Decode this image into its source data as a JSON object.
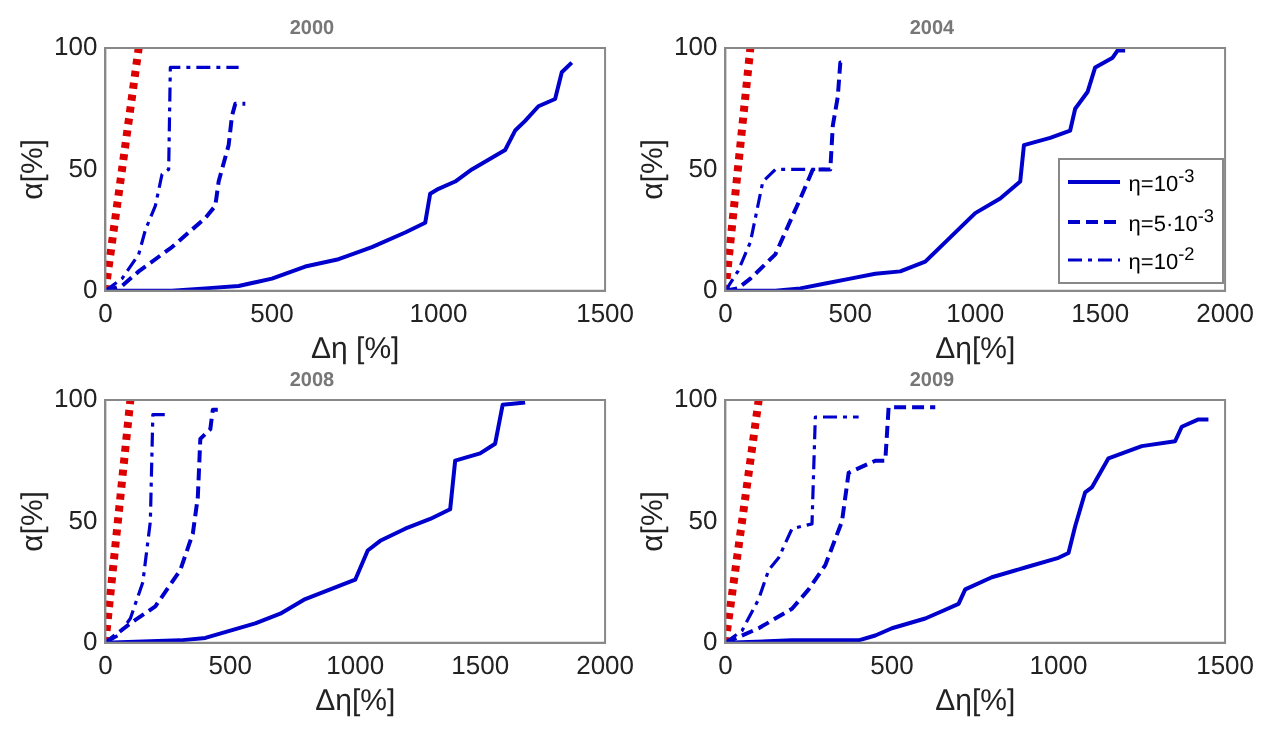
{
  "chart_data": [
    {
      "type": "line",
      "title": "2000",
      "xlabel": "Δη [%]",
      "ylabel": "α[%]",
      "xlim": [
        0,
        1500
      ],
      "xticks": [
        0,
        500,
        1000,
        1500
      ],
      "ylim": [
        0,
        100
      ],
      "yticks": [
        0,
        50,
        100
      ],
      "grid": false,
      "legend": false,
      "series": [
        {
          "color": "#0000cc",
          "line_style": "solid",
          "x": [
            0,
            200,
            300,
            400,
            500,
            600,
            700,
            800,
            900,
            960,
            975,
            1000,
            1050,
            1100,
            1150,
            1200,
            1230,
            1260,
            1300,
            1350,
            1370,
            1400
          ],
          "values": [
            0,
            0,
            1,
            2,
            5,
            10,
            13,
            18,
            24,
            28,
            40,
            42,
            45,
            50,
            54,
            58,
            66,
            70,
            76,
            79,
            90,
            94
          ]
        },
        {
          "color": "#0000cc",
          "line_style": "dashed",
          "x": [
            0,
            50,
            100,
            200,
            300,
            330,
            340,
            370,
            380,
            390,
            420
          ],
          "values": [
            0,
            2,
            8,
            18,
            30,
            35,
            45,
            60,
            72,
            77,
            77
          ]
        },
        {
          "color": "#0000cc",
          "line_style": "dashdot",
          "x": [
            0,
            50,
            100,
            120,
            150,
            170,
            190,
            195,
            400
          ],
          "values": [
            0,
            5,
            15,
            25,
            35,
            48,
            50,
            92,
            92
          ]
        },
        {
          "color": "#dd0000",
          "line_style": "dotted",
          "x": [
            0,
            100
          ],
          "values": [
            0,
            100
          ]
        }
      ]
    },
    {
      "type": "line",
      "title": "2004",
      "xlabel": "Δη[%]",
      "ylabel": "α[%]",
      "xlim": [
        0,
        2000
      ],
      "xticks": [
        0,
        500,
        1000,
        1500,
        2000
      ],
      "ylim": [
        0,
        100
      ],
      "yticks": [
        0,
        50,
        100
      ],
      "grid": false,
      "legend": "right",
      "series": [
        {
          "name": "η=10$^{-3}$",
          "color": "#0000cc",
          "line_style": "solid",
          "x": [
            0,
            200,
            300,
            400,
            500,
            600,
            700,
            800,
            900,
            1000,
            1100,
            1180,
            1195,
            1300,
            1380,
            1400,
            1450,
            1480,
            1550,
            1570,
            1600
          ],
          "values": [
            0,
            0,
            1,
            3,
            5,
            7,
            8,
            12,
            22,
            32,
            38,
            45,
            60,
            63,
            66,
            75,
            82,
            92,
            96,
            99,
            99
          ]
        },
        {
          "name": "η=5·10$^{-3}$",
          "color": "#0000cc",
          "line_style": "dashed",
          "x": [
            0,
            50,
            100,
            200,
            300,
            350,
            420,
            430,
            450,
            460,
            480
          ],
          "values": [
            0,
            1,
            5,
            15,
            38,
            50,
            50,
            68,
            80,
            94,
            94
          ]
        },
        {
          "name": "η=10$^{-2}$",
          "color": "#0000cc",
          "line_style": "dashdot",
          "x": [
            0,
            50,
            100,
            150,
            200,
            400
          ],
          "values": [
            0,
            8,
            20,
            45,
            50,
            50
          ]
        },
        {
          "color": "#dd0000",
          "line_style": "dotted",
          "x": [
            0,
            100
          ],
          "values": [
            0,
            100
          ]
        }
      ]
    },
    {
      "type": "line",
      "title": "2008",
      "xlabel": "Δη[%]",
      "ylabel": "α[%]",
      "xlim": [
        0,
        2000
      ],
      "xticks": [
        0,
        500,
        1000,
        1500,
        2000
      ],
      "ylim": [
        0,
        100
      ],
      "yticks": [
        0,
        50,
        100
      ],
      "grid": false,
      "legend": false,
      "series": [
        {
          "color": "#0000cc",
          "line_style": "solid",
          "x": [
            0,
            300,
            400,
            500,
            600,
            700,
            800,
            900,
            1000,
            1050,
            1100,
            1200,
            1300,
            1380,
            1400,
            1500,
            1560,
            1590,
            1680
          ],
          "values": [
            0,
            1,
            2,
            5,
            8,
            12,
            18,
            22,
            26,
            38,
            42,
            47,
            51,
            55,
            75,
            78,
            82,
            98,
            99
          ]
        },
        {
          "color": "#0000cc",
          "line_style": "dashed",
          "x": [
            0,
            100,
            200,
            300,
            350,
            370,
            380,
            420,
            430,
            450
          ],
          "values": [
            0,
            8,
            15,
            30,
            45,
            60,
            84,
            88,
            96,
            96
          ]
        },
        {
          "color": "#0000cc",
          "line_style": "dashdot",
          "x": [
            0,
            50,
            100,
            150,
            180,
            190,
            240
          ],
          "values": [
            0,
            3,
            10,
            25,
            50,
            94,
            94
          ]
        },
        {
          "color": "#dd0000",
          "line_style": "dotted",
          "x": [
            0,
            100
          ],
          "values": [
            0,
            100
          ]
        }
      ]
    },
    {
      "type": "line",
      "title": "2009",
      "xlabel": "Δη[%]",
      "ylabel": "α[%]",
      "xlim": [
        0,
        1500
      ],
      "xticks": [
        0,
        500,
        1000,
        1500
      ],
      "ylim": [
        0,
        100
      ],
      "yticks": [
        0,
        50,
        100
      ],
      "grid": false,
      "legend": false,
      "series": [
        {
          "color": "#0000cc",
          "line_style": "solid",
          "x": [
            0,
            200,
            400,
            450,
            500,
            600,
            650,
            700,
            720,
            800,
            900,
            1000,
            1030,
            1050,
            1080,
            1100,
            1150,
            1250,
            1350,
            1370,
            1420,
            1450
          ],
          "values": [
            0,
            1,
            1,
            3,
            6,
            10,
            13,
            16,
            22,
            27,
            31,
            35,
            37,
            48,
            62,
            64,
            76,
            81,
            83,
            89,
            92,
            92
          ]
        },
        {
          "color": "#0000cc",
          "line_style": "dashed",
          "x": [
            0,
            100,
            200,
            250,
            300,
            350,
            370,
            450,
            480,
            490,
            630
          ],
          "values": [
            0,
            6,
            14,
            22,
            32,
            50,
            70,
            75,
            75,
            97,
            97
          ]
        },
        {
          "color": "#0000cc",
          "line_style": "dashdot",
          "x": [
            0,
            50,
            100,
            130,
            160,
            200,
            260,
            270,
            400
          ],
          "values": [
            0,
            5,
            18,
            30,
            35,
            47,
            49,
            93,
            93
          ]
        },
        {
          "color": "#dd0000",
          "line_style": "dotted",
          "x": [
            0,
            100
          ],
          "values": [
            0,
            100
          ]
        }
      ]
    }
  ]
}
